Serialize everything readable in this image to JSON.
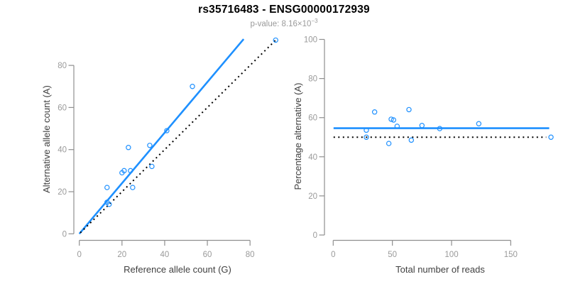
{
  "header": {
    "title": "rs35716483 - ENSG00000172939",
    "pvalue_text": "p-value: 8.16×10",
    "pvalue_exponent": "−3"
  },
  "colors": {
    "accent_blue": "#1E90FF",
    "dotted_line_black": "#000000",
    "axis_gray": "#8f8f8f",
    "tick_label_gray": "#9a9a9a",
    "axis_title_gray": "#404040"
  },
  "chart_data": [
    {
      "type": "scatter",
      "title": "rs35716483 - ENSG00000172939",
      "subtitle": "p-value: 8.16×10−3",
      "xlabel": "Reference allele count (G)",
      "ylabel": "Alternative allele count (A)",
      "x_ticks": [
        0,
        20,
        40,
        60,
        80
      ],
      "y_ticks": [
        0,
        20,
        40,
        60,
        80
      ],
      "xlim": [
        0,
        93
      ],
      "ylim": [
        0,
        93
      ],
      "grid": false,
      "legend": "none",
      "points": [
        [
          13,
          22
        ],
        [
          13,
          15
        ],
        [
          14,
          14
        ],
        [
          20,
          29
        ],
        [
          21,
          30
        ],
        [
          24,
          30
        ],
        [
          25,
          22
        ],
        [
          23,
          41
        ],
        [
          33,
          42
        ],
        [
          34,
          32
        ],
        [
          41,
          49
        ],
        [
          53,
          70
        ],
        [
          92,
          92
        ]
      ],
      "lines": [
        {
          "name": "fit-line",
          "style": "solid",
          "color": "blue",
          "slope": 1.2,
          "points": [
            [
              0,
              0
            ],
            [
              77,
              92.5
            ]
          ]
        },
        {
          "name": "identity-line",
          "style": "dotted",
          "color": "black",
          "points": [
            [
              0.5,
              0.5
            ],
            [
              92.8,
              92.8
            ]
          ]
        }
      ]
    },
    {
      "type": "scatter",
      "xlabel": "Total number of reads",
      "ylabel": "Percentage alternative (A)",
      "x_ticks": [
        0,
        50,
        100,
        150
      ],
      "y_ticks": [
        0,
        20,
        40,
        60,
        80,
        100
      ],
      "xlim": [
        0,
        185
      ],
      "ylim": [
        0,
        100
      ],
      "grid": false,
      "legend": "none",
      "points": [
        [
          35,
          62.9
        ],
        [
          28,
          53.6
        ],
        [
          28,
          50.0
        ],
        [
          49,
          59.2
        ],
        [
          51,
          58.8
        ],
        [
          54,
          55.6
        ],
        [
          47,
          46.8
        ],
        [
          64,
          64.1
        ],
        [
          75,
          56.0
        ],
        [
          66,
          48.5
        ],
        [
          90,
          54.4
        ],
        [
          123,
          56.9
        ],
        [
          184,
          50.0
        ]
      ],
      "lines": [
        {
          "name": "mean-percentage-line",
          "style": "solid",
          "color": "blue",
          "value": 54.6,
          "points": [
            [
              0.3,
              54.6
            ],
            [
              182.5,
              54.6
            ]
          ]
        },
        {
          "name": "fifty-percent-line",
          "style": "dotted",
          "color": "black",
          "value": 50,
          "points": [
            [
              0.3,
              50
            ],
            [
              180,
              50
            ]
          ]
        }
      ]
    }
  ]
}
